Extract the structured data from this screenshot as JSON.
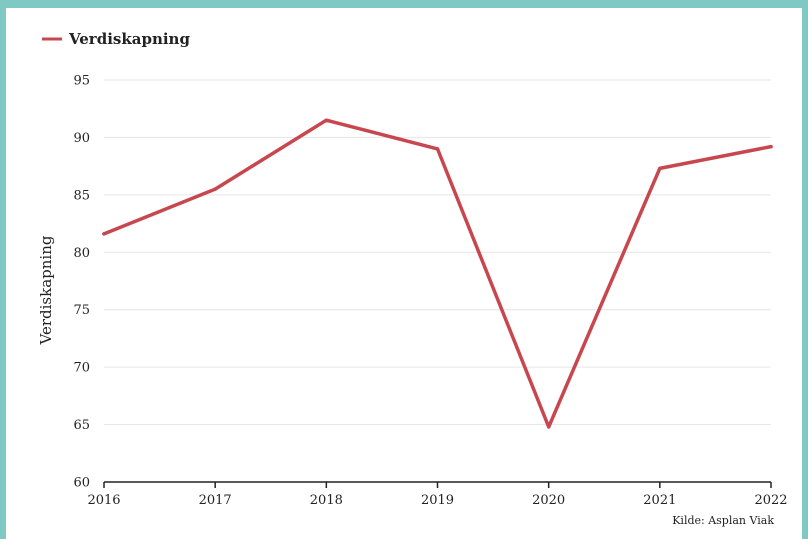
{
  "colors": {
    "frame": "#7fc8c4",
    "series": "#c8474f",
    "grid": "#e6e6e6",
    "axis": "#222222"
  },
  "source": "Kilde: Asplan Viak",
  "chart_data": {
    "type": "line",
    "ylabel": "Verdiskapning",
    "ylim": [
      60,
      95
    ],
    "yticks": [
      60,
      65,
      70,
      75,
      80,
      85,
      90,
      95
    ],
    "x": [
      "2016",
      "2017",
      "2018",
      "2019",
      "2020",
      "2021",
      "2022"
    ],
    "grid": "horizontal",
    "legend_position": "top-left",
    "series": [
      {
        "name": "Verdiskapning",
        "values": [
          81.6,
          85.5,
          91.5,
          89.0,
          64.8,
          87.3,
          89.2
        ]
      }
    ]
  }
}
